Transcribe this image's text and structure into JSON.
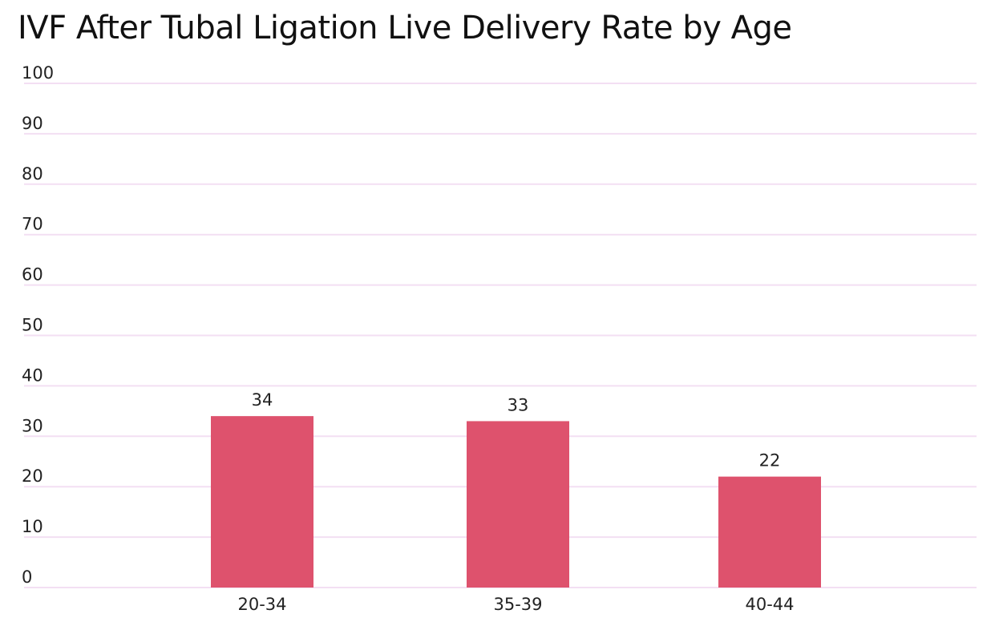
{
  "chart_data": {
    "type": "bar",
    "title": "IVF After Tubal Ligation Live Delivery Rate by Age",
    "xlabel": "",
    "ylabel": "",
    "categories": [
      "20-34",
      "35-39",
      "40-44"
    ],
    "values": [
      34,
      33,
      22
    ],
    "data_labels": [
      "34",
      "33",
      "22"
    ],
    "ylim": [
      0,
      100
    ],
    "y_ticks": [
      "0",
      "10",
      "20",
      "30",
      "40",
      "50",
      "60",
      "70",
      "80",
      "90",
      "100"
    ],
    "grid": true,
    "legend": "none",
    "colors": {
      "bar": "#de526d",
      "grid": "#f3dff3"
    }
  }
}
